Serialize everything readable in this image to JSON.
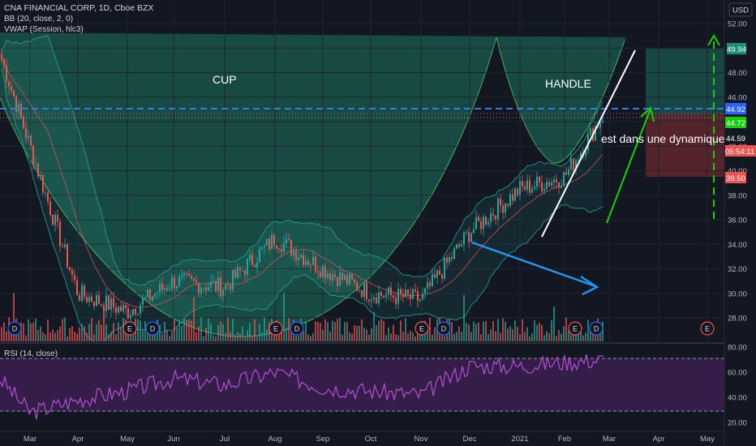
{
  "header": {
    "symbol_line": "CNA FINANCIAL CORP, 1D, Cboe BZX",
    "indicator_bb": "BB (20, close, 2, 0)",
    "indicator_vwap": "VWAP (Session, hlc3)",
    "rsi_label": "RSI (14, close)",
    "currency": "USD"
  },
  "annotations": {
    "cup": "CUP",
    "handle": "HANDLE",
    "comment": "est dans une dynamique ha"
  },
  "price_badges": {
    "target": "49.94",
    "resistance": "44.92",
    "last": "44.72",
    "alt": "44.59",
    "countdown": "05:54:11",
    "stop": "39.50"
  },
  "colors": {
    "background": "#131722",
    "up": "#26a69a",
    "down": "#ef5350",
    "bb": "#26a69a",
    "vwap": "#ef5350",
    "rsi": "#b24fcf",
    "arrow_blue": "#2196f3",
    "arrow_green": "#17d00c",
    "dash_blue": "#2f7ee8",
    "cup_fill": "#1b5c50"
  },
  "chart_data": [
    {
      "type": "line",
      "title": "CNA FINANCIAL CORP, 1D, Cboe BZX",
      "xlabel": "",
      "ylabel": "",
      "currency": "USD",
      "x_ticks": [
        "Mar",
        "Apr",
        "May",
        "Jun",
        "Jul",
        "Aug",
        "Sep",
        "Oct",
        "Nov",
        "Dec",
        "2021",
        "Feb",
        "Mar",
        "Apr",
        "May"
      ],
      "y_ticks": [
        "52.00",
        "50.00",
        "48.00",
        "46.00",
        "44.00",
        "42.00",
        "40.00",
        "38.00",
        "36.00",
        "34.00",
        "32.00",
        "30.00",
        "28.00"
      ],
      "ylim": [
        26.5,
        52.5
      ],
      "x_points": [
        "Feb",
        "Mar",
        "Apr",
        "May",
        "Jun",
        "Jul",
        "Aug",
        "Sep",
        "Oct",
        "Nov",
        "Dec",
        "2021",
        "Feb",
        "Mar"
      ],
      "series": [
        {
          "values": [
            49.5,
            42.0,
            30.0,
            28.5,
            31.0,
            30.5,
            34.5,
            32.0,
            30.0,
            29.5,
            35.0,
            38.5,
            39.5,
            44.72
          ]
        }
      ],
      "levels": {
        "resistance": 44.92,
        "target": 49.94,
        "stop": 39.5,
        "last": 44.72,
        "alt": 44.59
      },
      "event_markers": [
        "D",
        "E",
        "D",
        "E",
        "D",
        "E",
        "D",
        "E",
        "D",
        "E"
      ]
    },
    {
      "type": "line",
      "title": "RSI (14, close)",
      "y_ticks": [
        "80.00",
        "60.00",
        "40.00",
        "20.00"
      ],
      "ylim": [
        18,
        82
      ],
      "bands": [
        70,
        30
      ],
      "x_points": [
        "Feb",
        "Mar",
        "Apr",
        "May",
        "Jun",
        "Jul",
        "Aug",
        "Sep",
        "Oct",
        "Nov",
        "Dec",
        "2021",
        "Feb",
        "Mar"
      ],
      "series": [
        {
          "values": [
            55,
            28,
            38,
            45,
            55,
            50,
            60,
            48,
            45,
            42,
            65,
            65,
            68,
            70
          ]
        }
      ]
    }
  ]
}
